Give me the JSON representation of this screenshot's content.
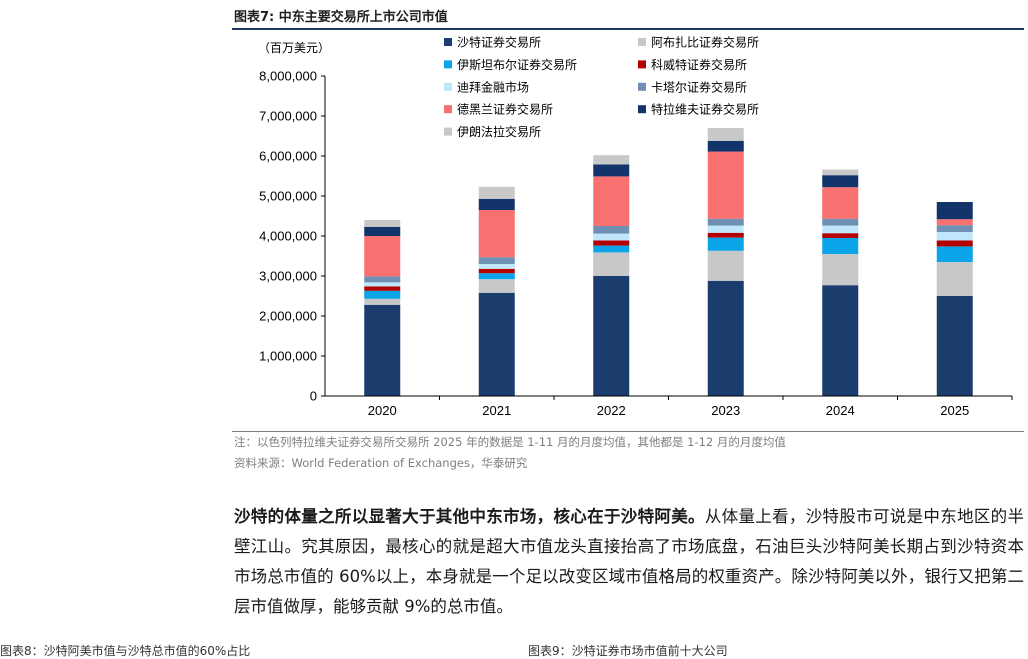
{
  "figure": {
    "title": "图表7:  中东主要交易所上市公司市值"
  },
  "chart_data": {
    "type": "bar",
    "stacked": true,
    "unit": "（百万美元）",
    "categories": [
      "2020",
      "2021",
      "2022",
      "2023",
      "2024",
      "2025"
    ],
    "y_ticks": [
      "0",
      "1,000,000",
      "2,000,000",
      "3,000,000",
      "4,000,000",
      "5,000,000",
      "6,000,000",
      "7,000,000",
      "8,000,000"
    ],
    "ylim": [
      0,
      8000000
    ],
    "legend_placement": "top",
    "series": [
      {
        "name": "沙特证券交易所",
        "color": "#1b3d6e",
        "values": [
          2280000,
          2580000,
          3000000,
          2880000,
          2770000,
          2500000
        ]
      },
      {
        "name": "阿布扎比证券交易所",
        "color": "#c8c8c8",
        "values": [
          150000,
          340000,
          590000,
          750000,
          780000,
          850000
        ]
      },
      {
        "name": "伊斯坦布尔证券交易所",
        "color": "#0aa5e8",
        "values": [
          200000,
          150000,
          170000,
          330000,
          400000,
          390000
        ]
      },
      {
        "name": "科威特证券交易所",
        "color": "#b30000",
        "values": [
          110000,
          110000,
          130000,
          120000,
          120000,
          150000
        ]
      },
      {
        "name": "迪拜金融市场",
        "color": "#bfe6fa",
        "values": [
          100000,
          120000,
          170000,
          180000,
          190000,
          210000
        ]
      },
      {
        "name": "卡塔尔证券交易所",
        "color": "#6f8fb5",
        "values": [
          150000,
          170000,
          190000,
          170000,
          170000,
          170000
        ]
      },
      {
        "name": "德黑兰证券交易所",
        "color": "#f97070",
        "values": [
          1010000,
          1180000,
          1240000,
          1680000,
          790000,
          150000
        ]
      },
      {
        "name": "特拉维夫证券交易所",
        "color": "#12346b",
        "values": [
          230000,
          280000,
          300000,
          270000,
          300000,
          430000
        ]
      },
      {
        "name": "伊朗法拉交易所",
        "color": "#c8c8c8",
        "values": [
          170000,
          300000,
          230000,
          320000,
          140000,
          0
        ]
      }
    ]
  },
  "notes": {
    "note": "注：以色列特拉维夫证券交易所交易所 2025 年的数据是 1-11 月的月度均值，其他都是 1-12 月的月度均值",
    "source": "资料来源：World Federation of Exchanges，华泰研究"
  },
  "body": {
    "bold": "沙特的体量之所以显著大于其他中东市场，核心在于沙特阿美。",
    "text": "从体量上看，沙特股市可说是中东地区的半壁江山。究其原因，最核心的就是超大市值龙头直接抬高了市场底盘，石油巨头沙特阿美长期占到沙特资本市场总市值的 60%以上，本身就是一个足以改变区域市值格局的权重资产。除沙特阿美以外，银行又把第二层市值做厚，能够贡献 9%的总市值。"
  },
  "footer": {
    "left": "图表8：沙特阿美市值与沙特总市值的60%占比",
    "right": "图表9：沙特证券市场市值前十大公司"
  }
}
